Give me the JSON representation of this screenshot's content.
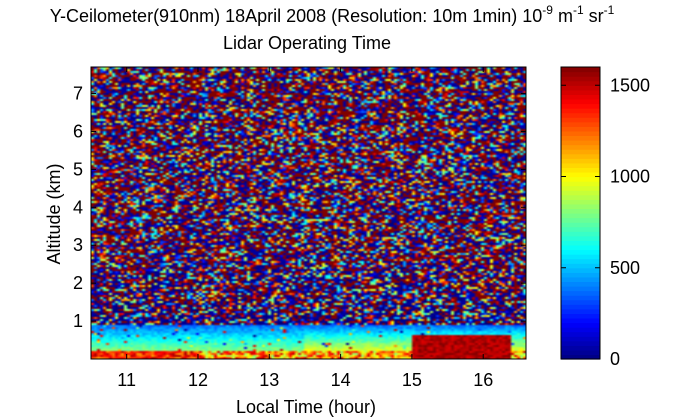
{
  "chart_data": {
    "type": "heatmap",
    "title_line1_prefix": "Y-Ceilometer(910nm) 18April 2008 (Resolution: 10m 1min) 10",
    "title_unit_m": "m",
    "title_unit_sr": "sr",
    "superscript_neg9": "-9",
    "superscript_neg1": "-1",
    "title_line2": "Lidar Operating Time",
    "xlabel": "Local Time (hour)",
    "ylabel": "Altitude (km)",
    "xlim": [
      10.5,
      16.6
    ],
    "ylim": [
      0,
      7.7
    ],
    "x_ticks": [
      "11",
      "12",
      "13",
      "14",
      "15",
      "16"
    ],
    "y_ticks": [
      "1",
      "2",
      "3",
      "4",
      "5",
      "6",
      "7"
    ],
    "colorbar": {
      "range": [
        0,
        1600
      ],
      "ticks": [
        "0",
        "500",
        "1000",
        "1500"
      ],
      "colormap": "jet"
    },
    "features": {
      "surface_layer_top_km": 0.2,
      "mixed_layer_top_km": 0.9,
      "enhanced_layer_x_range": [
        15.0,
        16.4
      ],
      "enhanced_layer_top_km": 0.65
    }
  }
}
